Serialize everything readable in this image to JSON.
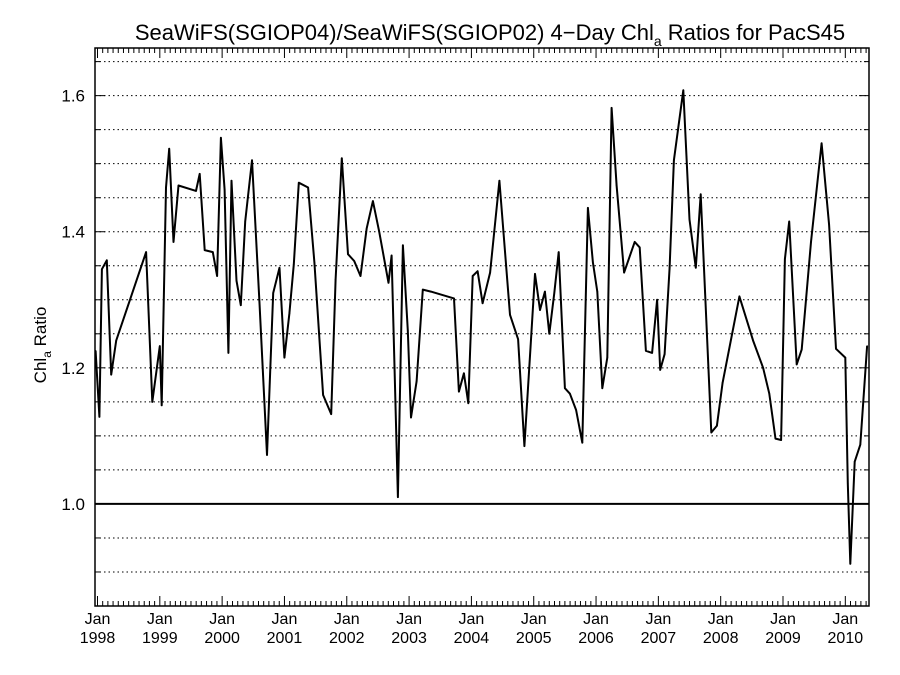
{
  "chart_data": {
    "type": "line",
    "title": {
      "main": "SeaWiFS(SGIOP04)/SeaWiFS(SGIOP02) 4−Day Chl",
      "sub": "a",
      "tail": " Ratios for PacS45"
    },
    "ylabel": {
      "main": "Chl",
      "sub": "a",
      "tail": " Ratio"
    },
    "xlabel": "",
    "ylim": [
      0.85,
      1.67
    ],
    "yticks": [
      {
        "v": 1.0,
        "label": "1.0"
      },
      {
        "v": 1.2,
        "label": "1.2"
      },
      {
        "v": 1.4,
        "label": "1.4"
      },
      {
        "v": 1.6,
        "label": "1.6"
      }
    ],
    "xticks": [
      {
        "x": 1998.0,
        "month": "Jan",
        "year": "1998"
      },
      {
        "x": 1999.0,
        "month": "Jan",
        "year": "1999"
      },
      {
        "x": 2000.0,
        "month": "Jan",
        "year": "2000"
      },
      {
        "x": 2001.0,
        "month": "Jan",
        "year": "2001"
      },
      {
        "x": 2002.0,
        "month": "Jan",
        "year": "2002"
      },
      {
        "x": 2003.0,
        "month": "Jan",
        "year": "2003"
      },
      {
        "x": 2004.0,
        "month": "Jan",
        "year": "2004"
      },
      {
        "x": 2005.0,
        "month": "Jan",
        "year": "2005"
      },
      {
        "x": 2006.0,
        "month": "Jan",
        "year": "2006"
      },
      {
        "x": 2007.0,
        "month": "Jan",
        "year": "2007"
      },
      {
        "x": 2008.0,
        "month": "Jan",
        "year": "2008"
      },
      {
        "x": 2009.0,
        "month": "Jan",
        "year": "2009"
      },
      {
        "x": 2010.0,
        "month": "Jan",
        "year": "2010"
      }
    ],
    "xlim": [
      1997.96,
      2010.38
    ],
    "grid": true,
    "gridlines_y": [
      0.9,
      0.95,
      1.05,
      1.1,
      1.15,
      1.2,
      1.25,
      1.3,
      1.35,
      1.4,
      1.45,
      1.5,
      1.55,
      1.6,
      1.65
    ],
    "reference_line": 1.0,
    "series": [
      {
        "x": [
          1997.97,
          1998.03,
          1998.07,
          1998.15,
          1998.22,
          1998.3,
          1998.78,
          1998.88,
          1999.0,
          1999.03,
          1999.1,
          1999.15,
          1999.22,
          1999.3,
          1999.58,
          1999.64,
          1999.72,
          1999.85,
          1999.92,
          1999.98,
          2000.04,
          2000.1,
          2000.15,
          2000.23,
          2000.3,
          2000.37,
          2000.48,
          2000.6,
          2000.72,
          2000.82,
          2000.92,
          2001.0,
          2001.08,
          2001.15,
          2001.23,
          2001.38,
          2001.48,
          2001.62,
          2001.75,
          2001.82,
          2001.92,
          2002.02,
          2002.12,
          2002.22,
          2002.32,
          2002.42,
          2002.52,
          2002.67,
          2002.72,
          2002.82,
          2002.9,
          2002.98,
          2003.03,
          2003.12,
          2003.22,
          2003.35,
          2003.72,
          2003.8,
          2003.88,
          2003.95,
          2004.02,
          2004.1,
          2004.18,
          2004.3,
          2004.45,
          2004.62,
          2004.75,
          2004.85,
          2004.95,
          2005.02,
          2005.1,
          2005.18,
          2005.25,
          2005.33,
          2005.4,
          2005.5,
          2005.58,
          2005.68,
          2005.78,
          2005.87,
          2005.95,
          2006.02,
          2006.1,
          2006.18,
          2006.25,
          2006.33,
          2006.45,
          2006.62,
          2006.7,
          2006.8,
          2006.9,
          2006.98,
          2007.03,
          2007.1,
          2007.18,
          2007.25,
          2007.4,
          2007.5,
          2007.6,
          2007.68,
          2007.75,
          2007.85,
          2007.94,
          2008.03,
          2008.3,
          2008.52,
          2008.68,
          2008.78,
          2008.88,
          2008.97,
          2009.03,
          2009.1,
          2009.22,
          2009.3,
          2009.45,
          2009.62,
          2009.74,
          2009.85,
          2010.0,
          2010.04,
          2010.08,
          2010.15,
          2010.24,
          2010.35
        ]
      }
    ],
    "values": [
      1.225,
      1.128,
      1.345,
      1.358,
      1.19,
      1.24,
      1.37,
      1.15,
      1.232,
      1.145,
      1.465,
      1.522,
      1.385,
      1.468,
      1.46,
      1.485,
      1.373,
      1.37,
      1.335,
      1.538,
      1.462,
      1.222,
      1.475,
      1.328,
      1.292,
      1.415,
      1.505,
      1.295,
      1.072,
      1.31,
      1.347,
      1.215,
      1.28,
      1.352,
      1.472,
      1.465,
      1.355,
      1.16,
      1.132,
      1.33,
      1.508,
      1.367,
      1.357,
      1.335,
      1.405,
      1.445,
      1.4,
      1.325,
      1.365,
      1.01,
      1.38,
      1.255,
      1.127,
      1.18,
      1.315,
      1.312,
      1.302,
      1.165,
      1.192,
      1.148,
      1.335,
      1.342,
      1.295,
      1.34,
      1.475,
      1.278,
      1.242,
      1.085,
      1.232,
      1.338,
      1.285,
      1.312,
      1.25,
      1.31,
      1.37,
      1.17,
      1.162,
      1.138,
      1.09,
      1.435,
      1.355,
      1.312,
      1.17,
      1.215,
      1.582,
      1.468,
      1.34,
      1.385,
      1.377,
      1.225,
      1.222,
      1.3,
      1.197,
      1.22,
      1.347,
      1.505,
      1.608,
      1.418,
      1.347,
      1.455,
      1.31,
      1.105,
      1.115,
      1.178,
      1.305,
      1.24,
      1.2,
      1.162,
      1.096,
      1.094,
      1.36,
      1.415,
      1.205,
      1.227,
      1.385,
      1.53,
      1.41,
      1.228,
      1.215,
      1.03,
      0.912,
      1.062,
      1.087,
      1.232
    ]
  }
}
